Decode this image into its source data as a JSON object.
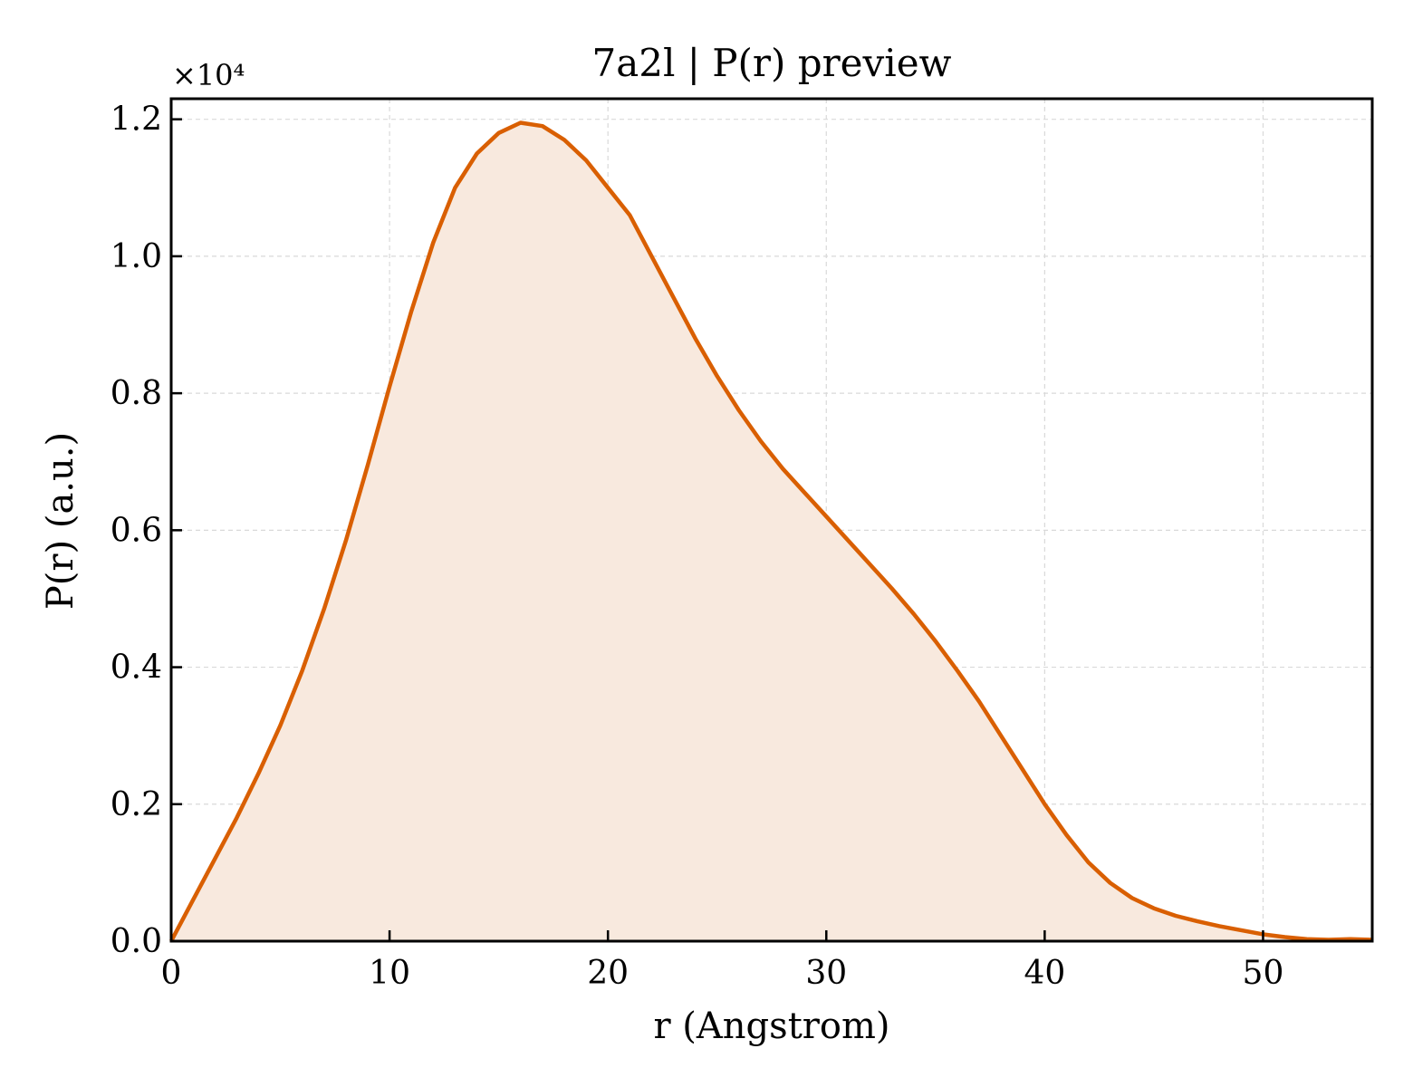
{
  "chart_data": {
    "type": "area",
    "title": "7a2l | P(r) preview",
    "xlabel": "r (Angstrom)",
    "ylabel": "P(r) (a.u.)",
    "y_multiplier_label": "×10⁴",
    "xlim": [
      0,
      55
    ],
    "ylim": [
      0,
      1.23
    ],
    "x_ticks": [
      0,
      10,
      20,
      30,
      40,
      50
    ],
    "x_tick_labels": [
      "0",
      "10",
      "20",
      "30",
      "40",
      "50"
    ],
    "y_ticks": [
      0,
      0.2,
      0.4,
      0.6,
      0.8,
      1.0,
      1.2
    ],
    "y_tick_labels": [
      "0.0",
      "0.2",
      "0.4",
      "0.6",
      "0.8",
      "1.0",
      "1.2"
    ],
    "grid": true,
    "legend": "none",
    "series": [
      {
        "color": "#d95f02",
        "fill_color": "#f8e9de",
        "x": [
          0,
          1,
          2,
          3,
          4,
          5,
          6,
          7,
          8,
          9,
          10,
          11,
          12,
          13,
          14,
          15,
          16,
          17,
          18,
          19,
          20,
          21,
          22,
          23,
          24,
          25,
          26,
          27,
          28,
          29,
          30,
          31,
          32,
          33,
          34,
          35,
          36,
          37,
          38,
          39,
          40,
          41,
          42,
          43,
          44,
          45,
          46,
          47,
          48,
          49,
          50,
          51,
          52,
          53,
          54,
          55
        ],
        "y": [
          0,
          0.06,
          0.12,
          0.18,
          0.245,
          0.315,
          0.395,
          0.485,
          0.585,
          0.695,
          0.81,
          0.92,
          1.02,
          1.1,
          1.15,
          1.18,
          1.195,
          1.19,
          1.17,
          1.14,
          1.1,
          1.06,
          1.0,
          0.94,
          0.88,
          0.825,
          0.775,
          0.73,
          0.69,
          0.655,
          0.62,
          0.585,
          0.55,
          0.515,
          0.478,
          0.438,
          0.395,
          0.35,
          0.3,
          0.25,
          0.2,
          0.155,
          0.115,
          0.085,
          0.063,
          0.048,
          0.037,
          0.029,
          0.022,
          0.016,
          0.01,
          0.006,
          0.003,
          0.002,
          0.003,
          0.002
        ]
      }
    ]
  }
}
